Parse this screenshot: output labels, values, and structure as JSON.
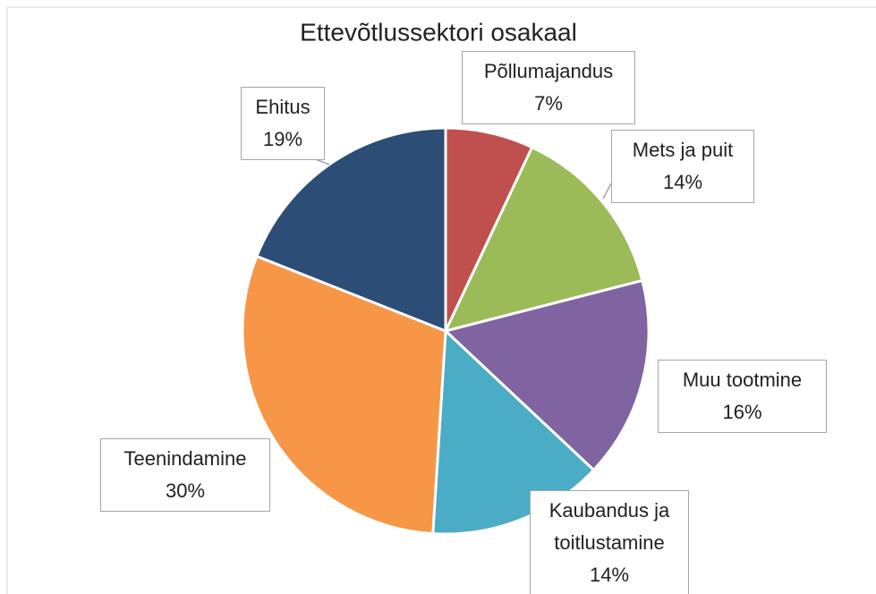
{
  "chart_data": {
    "type": "pie",
    "title": "Ettevõtlussektori osakaal",
    "categories": [
      "Põllumajandus",
      "Mets ja puit",
      "Muu tootmine",
      "Kaubandus ja toitlustamine",
      "Teenindamine",
      "Ehitus"
    ],
    "values": [
      7,
      14,
      16,
      14,
      30,
      19
    ],
    "value_labels": [
      "7%",
      "14%",
      "16%",
      "14%",
      "30%",
      "19%"
    ],
    "colors": [
      "#c0504d",
      "#9bbb59",
      "#8064a2",
      "#4bacc6",
      "#f79646",
      "#2c4d75"
    ]
  }
}
